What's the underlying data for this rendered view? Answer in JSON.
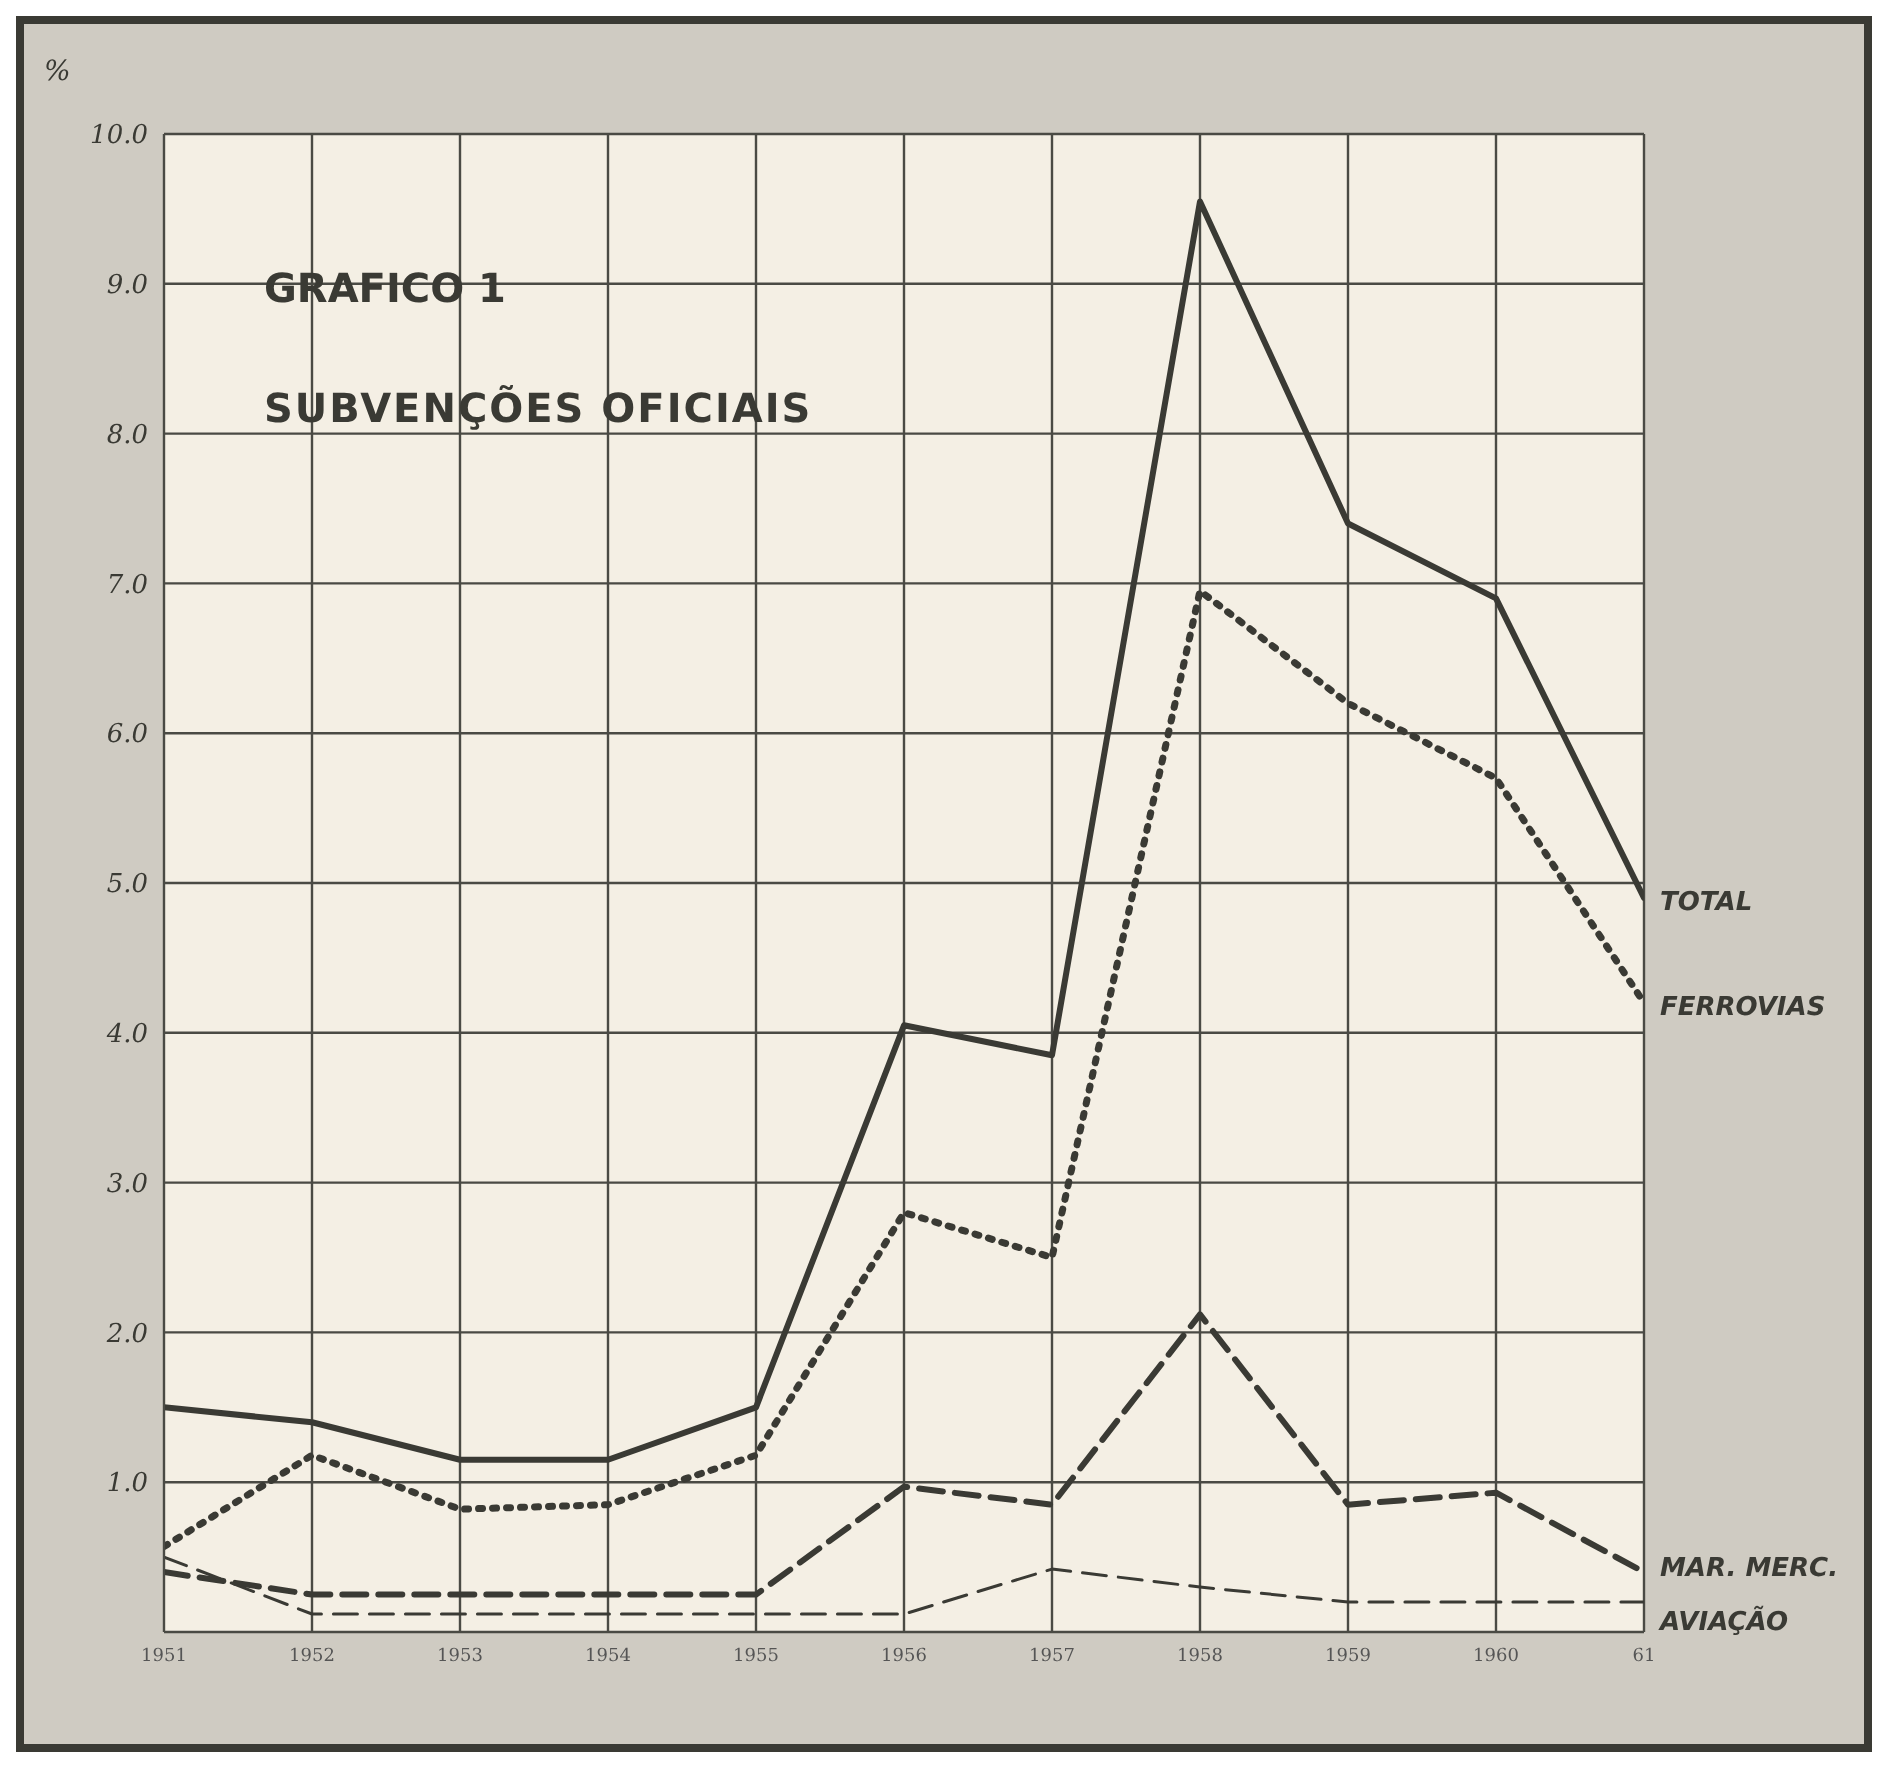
{
  "chart_data": {
    "type": "line",
    "title": "GRAFICO 1",
    "subtitle": "SUBVENÇÕES OFICIAIS",
    "ylabel": "%",
    "categories": [
      "1951",
      "1952",
      "1953",
      "1954",
      "1955",
      "1956",
      "1957",
      "1958",
      "1959",
      "1960",
      "61"
    ],
    "series": [
      {
        "name": "TOTAL",
        "color": "#3a3a34",
        "line_style": "solid",
        "values": [
          1.5,
          1.4,
          1.15,
          1.15,
          1.5,
          4.05,
          3.85,
          9.55,
          7.4,
          6.9,
          4.9
        ]
      },
      {
        "name": "FERROVIAS",
        "color": "#3a3a34",
        "line_style": "dotted",
        "values": [
          0.57,
          1.18,
          0.82,
          0.85,
          1.18,
          2.8,
          2.5,
          6.95,
          6.2,
          5.7,
          4.2
        ]
      },
      {
        "name": "MAR. MERC.",
        "color": "#3a3a34",
        "line_style": "dashed",
        "values": [
          0.4,
          0.25,
          0.25,
          0.25,
          0.25,
          0.97,
          0.85,
          2.12,
          0.85,
          0.93,
          0.4
        ]
      },
      {
        "name": "AVIAÇÃO",
        "color": "#3a3a34",
        "line_style": "dashed",
        "values": [
          0.5,
          0.12,
          0.12,
          0.12,
          0.12,
          0.12,
          0.42,
          0.3,
          0.2,
          0.2,
          0.2
        ]
      }
    ],
    "ylim": [
      0,
      10
    ],
    "yticks": [
      {
        "value": 0,
        "label": null
      },
      {
        "value": 1,
        "label": "1.0"
      },
      {
        "value": 2,
        "label": "2.0"
      },
      {
        "value": 3,
        "label": "3.0"
      },
      {
        "value": 4,
        "label": "4.0"
      },
      {
        "value": 5,
        "label": "5.0"
      },
      {
        "value": 6,
        "label": "6.0"
      },
      {
        "value": 7,
        "label": "7.0"
      },
      {
        "value": 8,
        "label": "8.0"
      },
      {
        "value": 9,
        "label": "9.0"
      },
      {
        "value": 10,
        "label": "10.0"
      }
    ],
    "grid": true,
    "legend": false,
    "marker": "none"
  }
}
